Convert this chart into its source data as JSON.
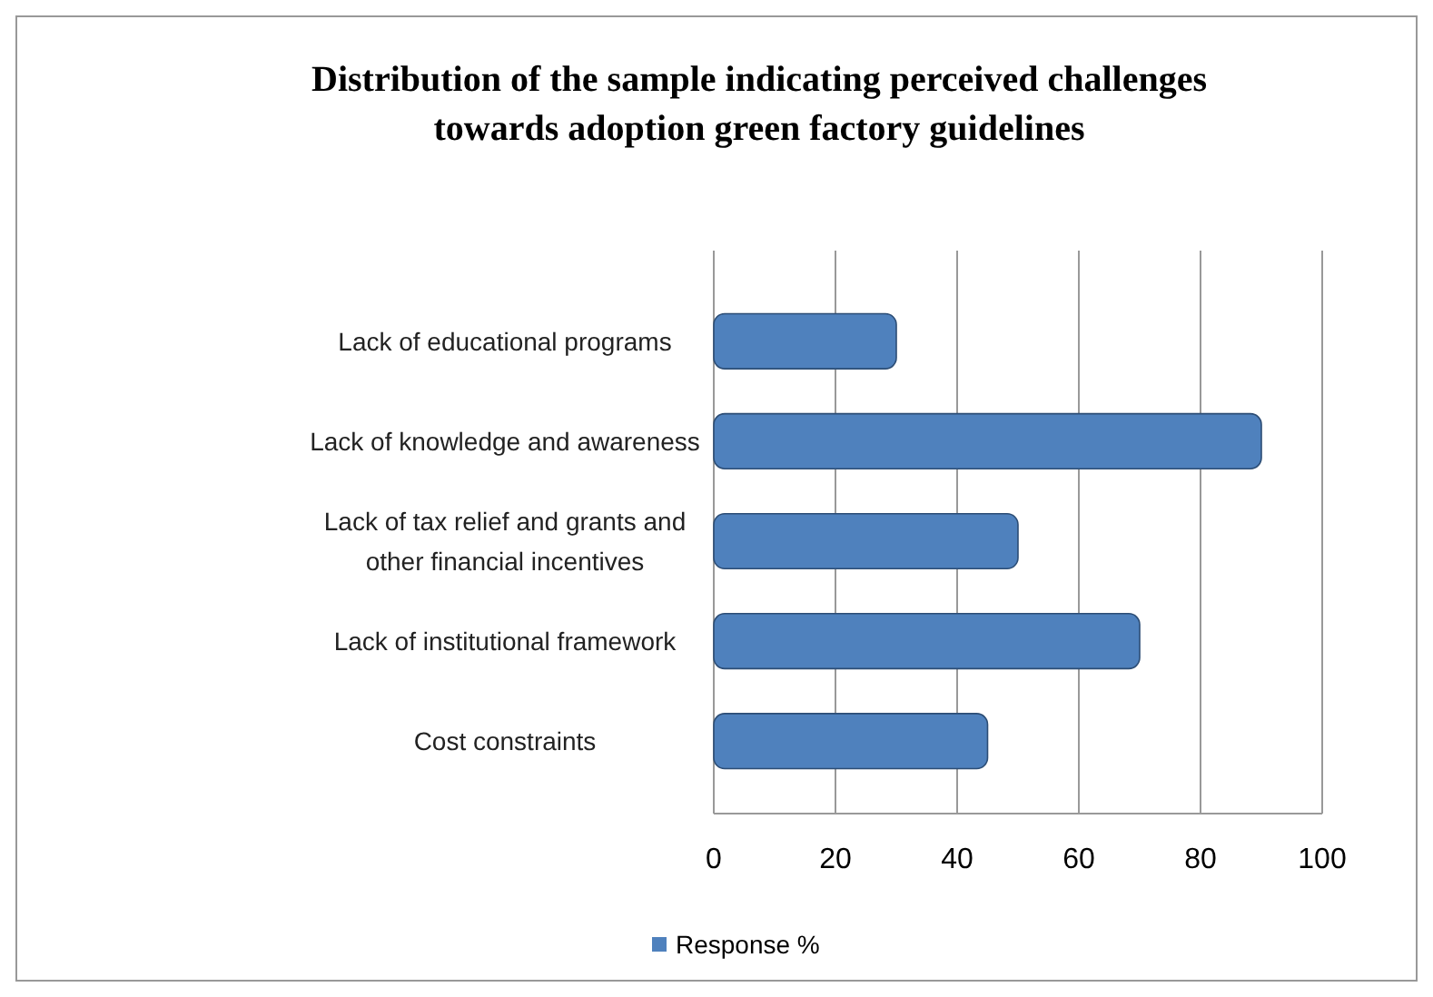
{
  "chart_data": {
    "type": "bar",
    "orientation": "horizontal",
    "title": "Distribution of the sample indicating perceived challenges towards  adoption green factory guidelines",
    "categories": [
      "Lack of educational programs",
      "Lack of knowledge and awareness",
      "Lack of tax relief and grants and other financial incentives",
      "Lack of institutional framework",
      "Cost constraints"
    ],
    "series": [
      {
        "name": "Response %",
        "color": "#4f81bd",
        "values": [
          30,
          90,
          50,
          70,
          45
        ]
      }
    ],
    "xlim": [
      0,
      100
    ],
    "xticks": [
      0,
      20,
      40,
      60,
      80,
      100
    ],
    "grid": "x",
    "legend": "bottom"
  }
}
